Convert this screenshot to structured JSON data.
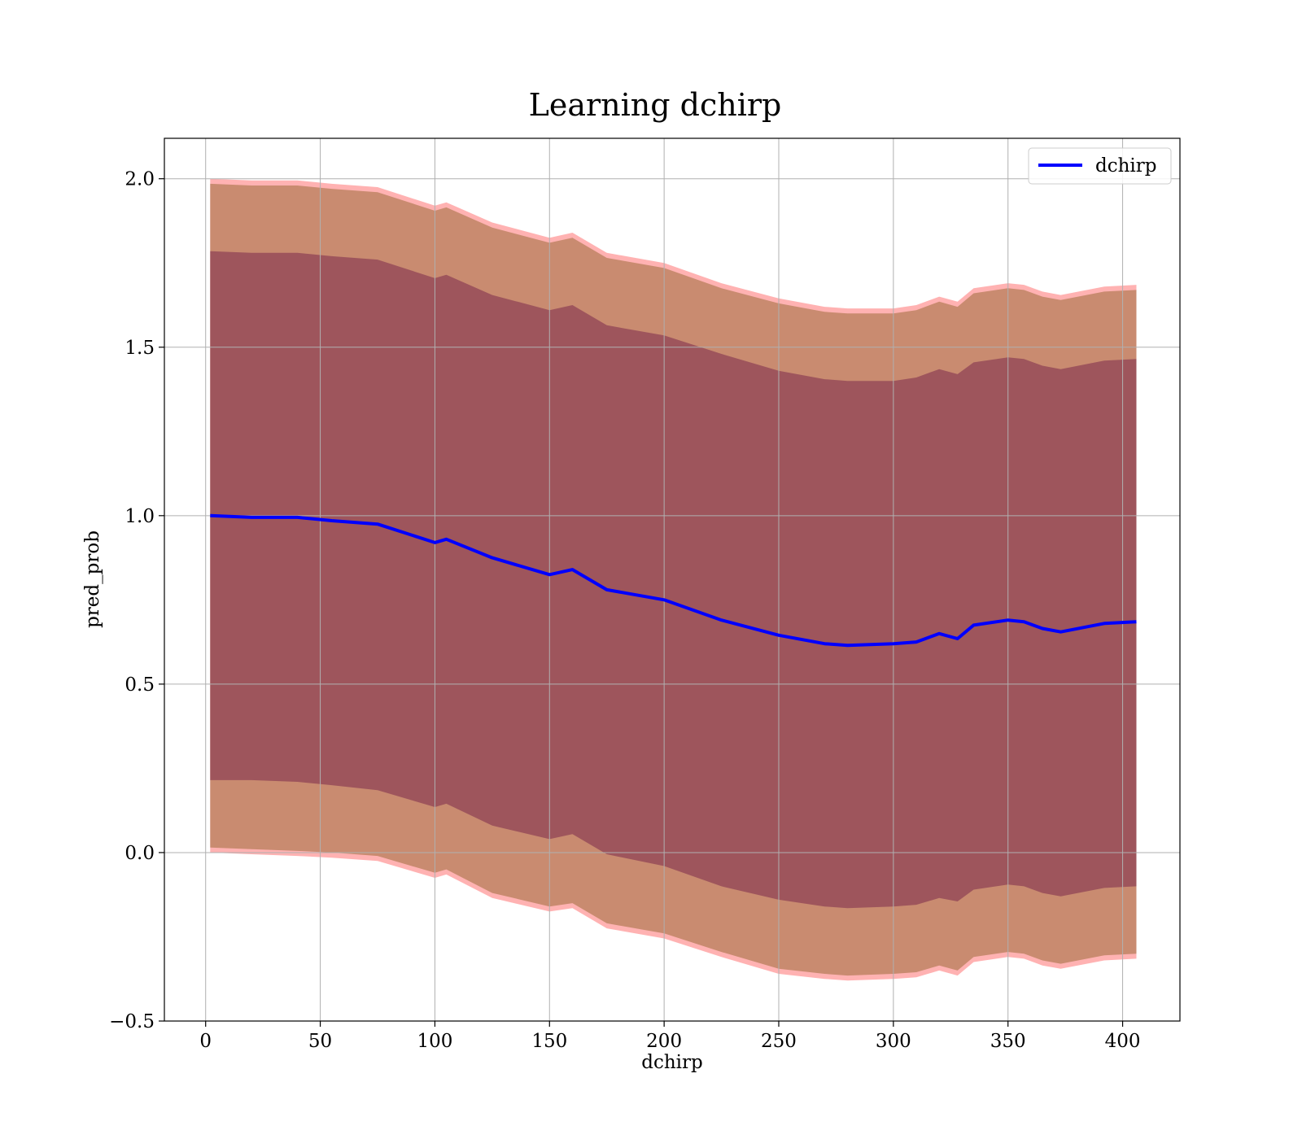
{
  "chart_data": {
    "type": "line",
    "title": "Learning dchirp",
    "xlabel": "dchirp",
    "ylabel": "pred_prob",
    "xlim": [
      -18,
      425
    ],
    "ylim": [
      -0.5,
      2.12
    ],
    "xticks": [
      0,
      50,
      100,
      150,
      200,
      250,
      300,
      350,
      400
    ],
    "yticks": [
      -0.5,
      0.0,
      0.5,
      1.0,
      1.5,
      2.0
    ],
    "xtick_labels": [
      "0",
      "50",
      "100",
      "150",
      "200",
      "250",
      "300",
      "350",
      "400"
    ],
    "ytick_labels": [
      "−0.5",
      "0.0",
      "0.5",
      "1.0",
      "1.5",
      "2.0"
    ],
    "grid": true,
    "legend": {
      "placement": "top-right",
      "entries": [
        "dchirp"
      ]
    },
    "colors": {
      "line": "#0000ff",
      "outer_band": "#ff0000",
      "mid_band": "#9c6b3a",
      "inner_band": "#7a2a4c"
    },
    "series": [
      {
        "name": "dchirp",
        "x": [
          2,
          20,
          40,
          55,
          75,
          100,
          105,
          125,
          150,
          160,
          175,
          200,
          225,
          250,
          270,
          280,
          300,
          310,
          320,
          328,
          335,
          350,
          357,
          365,
          373,
          392,
          406
        ],
        "y": [
          1.0,
          0.995,
          0.995,
          0.985,
          0.975,
          0.92,
          0.93,
          0.875,
          0.825,
          0.84,
          0.78,
          0.75,
          0.69,
          0.645,
          0.62,
          0.615,
          0.62,
          0.625,
          0.65,
          0.635,
          0.675,
          0.69,
          0.685,
          0.665,
          0.655,
          0.68,
          0.685
        ]
      }
    ],
    "bands": [
      {
        "name": "outer",
        "lower": [
          0.0,
          -0.005,
          -0.01,
          -0.015,
          -0.025,
          -0.075,
          -0.065,
          -0.135,
          -0.175,
          -0.165,
          -0.225,
          -0.255,
          -0.31,
          -0.36,
          -0.375,
          -0.38,
          -0.375,
          -0.37,
          -0.35,
          -0.365,
          -0.325,
          -0.31,
          -0.315,
          -0.335,
          -0.345,
          -0.32,
          -0.315
        ],
        "upper": [
          2.0,
          1.995,
          1.995,
          1.985,
          1.975,
          1.92,
          1.93,
          1.87,
          1.825,
          1.84,
          1.78,
          1.75,
          1.69,
          1.645,
          1.62,
          1.615,
          1.615,
          1.625,
          1.65,
          1.635,
          1.675,
          1.69,
          1.685,
          1.665,
          1.655,
          1.68,
          1.685
        ]
      },
      {
        "name": "middle",
        "lower": [
          0.015,
          0.01,
          0.005,
          0.0,
          -0.01,
          -0.06,
          -0.05,
          -0.12,
          -0.16,
          -0.15,
          -0.21,
          -0.24,
          -0.295,
          -0.345,
          -0.36,
          -0.365,
          -0.36,
          -0.355,
          -0.335,
          -0.35,
          -0.31,
          -0.295,
          -0.3,
          -0.32,
          -0.33,
          -0.305,
          -0.3
        ],
        "upper": [
          1.985,
          1.98,
          1.98,
          1.97,
          1.96,
          1.905,
          1.915,
          1.855,
          1.81,
          1.825,
          1.765,
          1.735,
          1.675,
          1.63,
          1.605,
          1.6,
          1.6,
          1.61,
          1.635,
          1.62,
          1.66,
          1.675,
          1.67,
          1.65,
          1.64,
          1.665,
          1.67
        ]
      },
      {
        "name": "inner",
        "lower": [
          0.215,
          0.215,
          0.21,
          0.2,
          0.185,
          0.135,
          0.145,
          0.08,
          0.04,
          0.055,
          -0.005,
          -0.04,
          -0.1,
          -0.14,
          -0.16,
          -0.165,
          -0.16,
          -0.155,
          -0.135,
          -0.145,
          -0.11,
          -0.095,
          -0.1,
          -0.12,
          -0.13,
          -0.105,
          -0.1
        ],
        "upper": [
          1.785,
          1.78,
          1.78,
          1.77,
          1.76,
          1.705,
          1.715,
          1.655,
          1.61,
          1.625,
          1.565,
          1.535,
          1.48,
          1.43,
          1.405,
          1.4,
          1.4,
          1.41,
          1.435,
          1.42,
          1.455,
          1.47,
          1.465,
          1.445,
          1.435,
          1.46,
          1.465
        ]
      }
    ]
  }
}
